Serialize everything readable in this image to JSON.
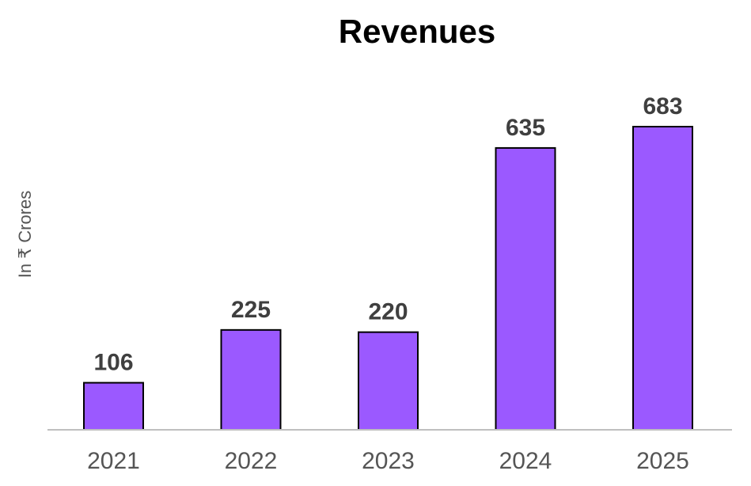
{
  "chart_data": {
    "type": "bar",
    "title": "Revenues",
    "ylabel": "In ₹ Crores",
    "xlabel": "",
    "categories": [
      "2021",
      "2022",
      "2023",
      "2024",
      "2025"
    ],
    "values": [
      106,
      225,
      220,
      635,
      683
    ],
    "ylim": [
      0,
      683
    ],
    "grid": false,
    "legend": "none",
    "bar_color": "#9b59ff",
    "bar_edge_color": "#000000",
    "axis_color": "#bfbfbf"
  }
}
